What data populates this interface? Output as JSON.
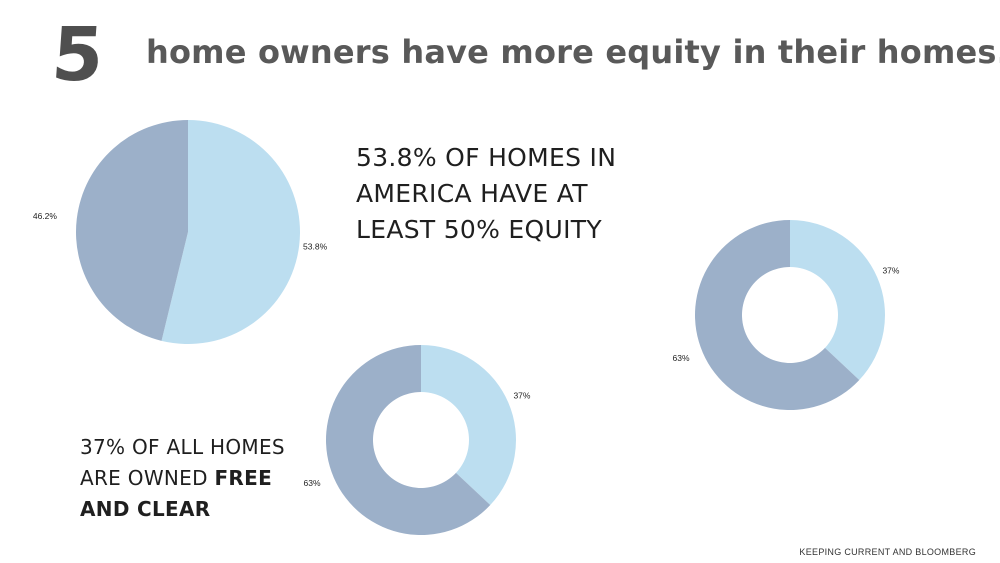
{
  "header": {
    "number": "5",
    "title": "home owners have more equity in their homes."
  },
  "captions": {
    "equity": [
      "53.8% OF HOMES IN",
      "AMERICA HAVE AT",
      "LEAST 50% EQUITY"
    ],
    "free_clear_plain": [
      "37% OF ALL HOMES",
      "ARE OWNED "
    ],
    "free_clear_bold_inline": "FREE",
    "free_clear_bold_line": "AND CLEAR"
  },
  "source": "KEEPING CURRENT AND BLOOMBERG",
  "colors": {
    "light": "#bcdef0",
    "dark": "#9cb0c9"
  },
  "chart_data": [
    {
      "type": "pie",
      "categories": [
        "",
        ""
      ],
      "values": [
        53.8,
        46.2
      ],
      "data_labels": [
        "53.8%",
        "46.2%"
      ],
      "colors": [
        "#bcdef0",
        "#9cb0c9"
      ]
    },
    {
      "type": "pie",
      "style": "donut",
      "categories": [
        "",
        ""
      ],
      "values": [
        37,
        63
      ],
      "data_labels": [
        "37%",
        "63%"
      ],
      "colors": [
        "#bcdef0",
        "#9cb0c9"
      ]
    },
    {
      "type": "pie",
      "style": "donut",
      "categories": [
        "",
        ""
      ],
      "values": [
        37,
        63
      ],
      "data_labels": [
        "37%",
        "63%"
      ],
      "colors": [
        "#bcdef0",
        "#9cb0c9"
      ]
    }
  ]
}
